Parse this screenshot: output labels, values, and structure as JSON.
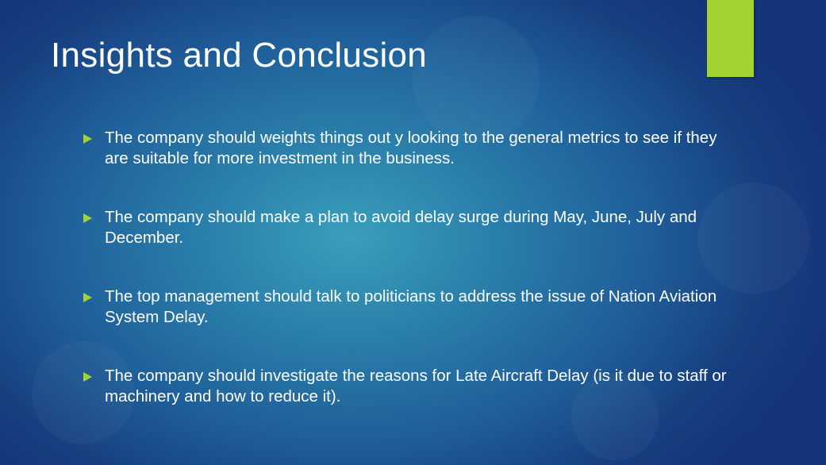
{
  "slide": {
    "title": "Insights and Conclusion",
    "accent_color": "#a4d233",
    "bullet_icon": "triangle-right-icon",
    "bullets": [
      "The company should weights things out y looking to the general metrics to see if they are suitable for more investment in the business.",
      "The company should make a plan to avoid delay surge during May, June, July and December.",
      "The top management should talk to politicians to address the issue of Nation Aviation System Delay.",
      "The company should investigate the reasons for Late Aircraft Delay (is it due to staff or machinery and how to reduce it)."
    ]
  }
}
